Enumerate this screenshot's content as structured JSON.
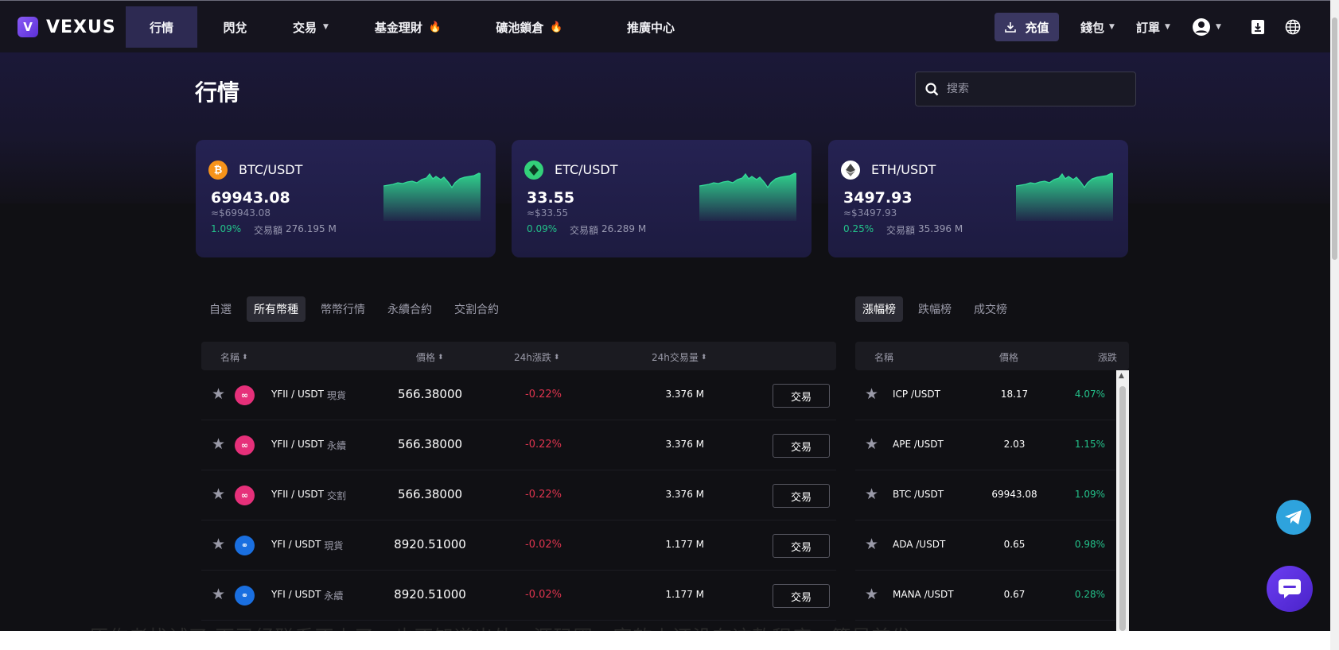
{
  "brand": {
    "name": "VEXUS",
    "logo_letter": "V"
  },
  "nav": {
    "items": [
      {
        "label": "行情",
        "active": true
      },
      {
        "label": "閃兌"
      },
      {
        "label": "交易",
        "dropdown": true
      },
      {
        "label": "基金理財",
        "hot": true
      },
      {
        "label": "礦池鎖倉",
        "hot": true
      },
      {
        "label": "推廣中心"
      }
    ],
    "deposit_label": "充值",
    "wallet_label": "錢包",
    "orders_label": "訂單"
  },
  "page": {
    "title": "行情",
    "search_placeholder": "搜索"
  },
  "cards": [
    {
      "pair": "BTC/USDT",
      "price": "69943.08",
      "approx": "≈$69943.08",
      "change": "1.09%",
      "volume_label": "交易額",
      "volume": "276.195 M",
      "icon_color": "#f7931a",
      "icon_glyph": "₿"
    },
    {
      "pair": "ETC/USDT",
      "price": "33.55",
      "approx": "≈$33.55",
      "change": "0.09%",
      "volume_label": "交易額",
      "volume": "26.289 M",
      "icon_color": "#33d17a",
      "icon_glyph": "◆"
    },
    {
      "pair": "ETH/USDT",
      "price": "3497.93",
      "approx": "≈$3497.93",
      "change": "0.25%",
      "volume_label": "交易額",
      "volume": "35.396 M",
      "icon_color": "#ffffff",
      "icon_glyph": "◆"
    }
  ],
  "tabs": [
    "自選",
    "所有幣種",
    "幣幣行情",
    "永續合約",
    "交割合約"
  ],
  "active_tab": "所有幣種",
  "rank_tabs": [
    "漲幅榜",
    "跌幅榜",
    "成交榜"
  ],
  "active_rank_tab": "漲幅榜",
  "table": {
    "headers": {
      "name": "名稱",
      "price": "價格",
      "change": "24h漲跌",
      "volume": "24h交易量"
    },
    "trade_label": "交易",
    "rows": [
      {
        "pair": "YFII / USDT",
        "kind": "現貨",
        "price": "566.38000",
        "change": "-0.22%",
        "volume": "3.376 M",
        "icon": "yfii"
      },
      {
        "pair": "YFII / USDT",
        "kind": "永續",
        "price": "566.38000",
        "change": "-0.22%",
        "volume": "3.376 M",
        "icon": "yfii"
      },
      {
        "pair": "YFII / USDT",
        "kind": "交割",
        "price": "566.38000",
        "change": "-0.22%",
        "volume": "3.376 M",
        "icon": "yfii"
      },
      {
        "pair": "YFI / USDT",
        "kind": "現貨",
        "price": "8920.51000",
        "change": "-0.02%",
        "volume": "1.177 M",
        "icon": "yfi"
      },
      {
        "pair": "YFI / USDT",
        "kind": "永續",
        "price": "8920.51000",
        "change": "-0.02%",
        "volume": "1.177 M",
        "icon": "yfi"
      }
    ]
  },
  "ranking": {
    "headers": {
      "name": "名稱",
      "price": "價格",
      "change": "漲跌"
    },
    "rows": [
      {
        "name": "ICP /USDT",
        "price": "18.17",
        "change": "4.07%"
      },
      {
        "name": "APE /USDT",
        "price": "2.03",
        "change": "1.15%"
      },
      {
        "name": "BTC /USDT",
        "price": "69943.08",
        "change": "1.09%"
      },
      {
        "name": "ADA /USDT",
        "price": "0.65",
        "change": "0.98%"
      },
      {
        "name": "MANA /USDT",
        "price": "0.67",
        "change": "0.28%"
      }
    ]
  },
  "overlay": {
    "bottom_text": "原作者找试了 下已经联系不上了，也不知道出处，源码圈、客软上还没有这款程序，算是首发"
  },
  "colors": {
    "accent": "#2d2a52",
    "up": "#23c28a",
    "down": "#e0344e",
    "yfii": "#e6307a",
    "yfi": "#1a6fe0"
  }
}
